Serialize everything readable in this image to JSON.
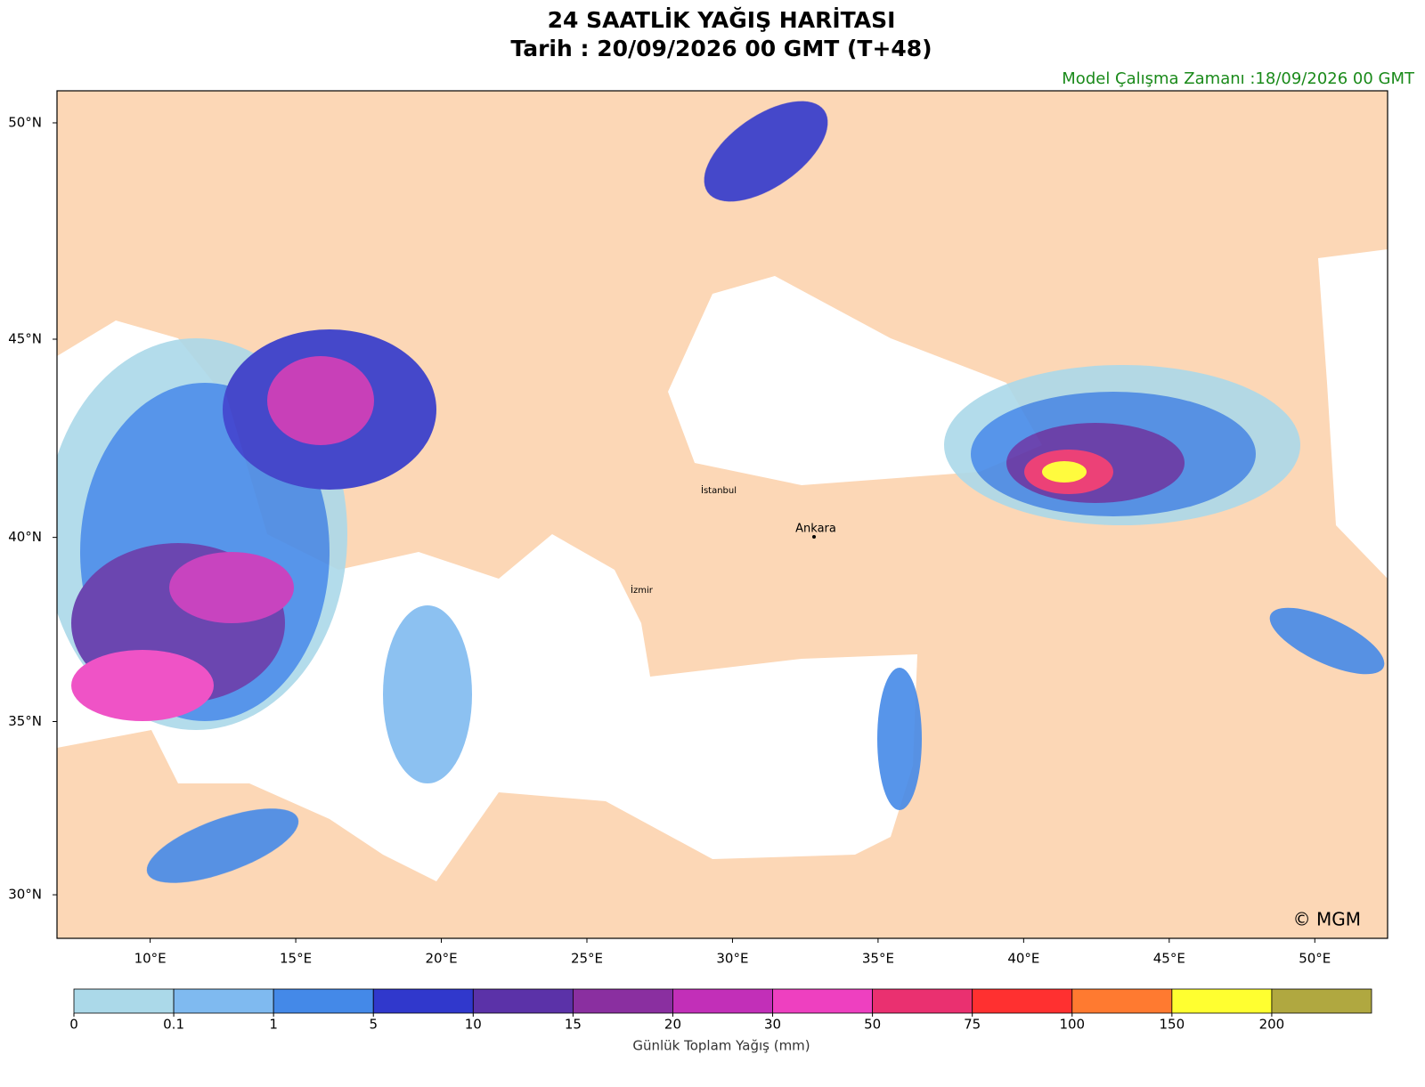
{
  "title": "24 SAATLİK YAĞIŞ HARİTASI",
  "subtitle": "Tarih : 20/09/2026  00 GMT (T+48)",
  "run_time": "Model Çalışma Zamanı :18/09/2026  00 GMT",
  "map": {
    "lonlim": [
      6.8,
      52.5
    ],
    "latlim": [
      28.7,
      50.7
    ],
    "lon_ticks": [
      {
        "value": 10,
        "label": "10°E"
      },
      {
        "value": 15,
        "label": "15°E"
      },
      {
        "value": 20,
        "label": "20°E"
      },
      {
        "value": 25,
        "label": "25°E"
      },
      {
        "value": 30,
        "label": "30°E"
      },
      {
        "value": 35,
        "label": "35°E"
      },
      {
        "value": 40,
        "label": "40°E"
      },
      {
        "value": 45,
        "label": "45°E"
      },
      {
        "value": 50,
        "label": "50°E"
      }
    ],
    "lat_ticks": [
      {
        "value": 30,
        "label": "30°N"
      },
      {
        "value": 35,
        "label": "35°N"
      },
      {
        "value": 40,
        "label": "40°N"
      },
      {
        "value": 45,
        "label": "45°N"
      },
      {
        "value": 50,
        "label": "50°N"
      }
    ],
    "labels": [
      "İstanbul",
      "Ankara",
      "İzmir"
    ],
    "copyright": "© MGM"
  },
  "colorbar": {
    "label": "Günlük Toplam Yağış (mm)",
    "ticks": [
      0,
      0.1,
      1,
      5,
      10,
      15,
      20,
      30,
      50,
      75,
      100,
      150,
      200
    ],
    "colors": [
      "#abd9e9",
      "#7fbaf0",
      "#4489e8",
      "#3038cc",
      "#5b32a8",
      "#8a2fa0",
      "#c22fb8",
      "#ee40c0",
      "#ea3070",
      "#ff3030",
      "#ff7a30",
      "#ffff30",
      "#b0a840"
    ]
  }
}
